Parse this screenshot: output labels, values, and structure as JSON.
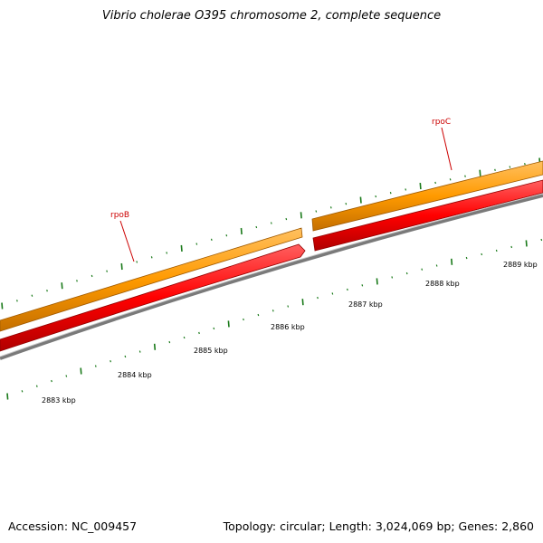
{
  "title": "Vibrio cholerae O395 chromosome 2, complete sequence",
  "footer": {
    "accession": "Accession: NC_009457",
    "summary": "Topology: circular; Length: 3,024,069 bp; Genes: 2,860"
  },
  "genes": [
    {
      "name": "rpoB",
      "strand": "+"
    },
    {
      "name": "rpoC",
      "strand": "+"
    }
  ],
  "scale": {
    "ticks": [
      {
        "label": "2883 kbp"
      },
      {
        "label": "2884 kbp"
      },
      {
        "label": "2885 kbp"
      },
      {
        "label": "2886 kbp"
      },
      {
        "label": "2887 kbp"
      },
      {
        "label": "2888 kbp"
      },
      {
        "label": "2889 kbp"
      }
    ]
  },
  "colors": {
    "gene_forward": "#ff9a00",
    "gene_forward_dark": "#b36b00",
    "gene_cds": "#ff0000",
    "gene_cds_dark": "#a80000",
    "backbone": "#808080",
    "backbone_light": "#c8c8c8",
    "tick": "#1a7a1a",
    "label": "#cc0000"
  }
}
